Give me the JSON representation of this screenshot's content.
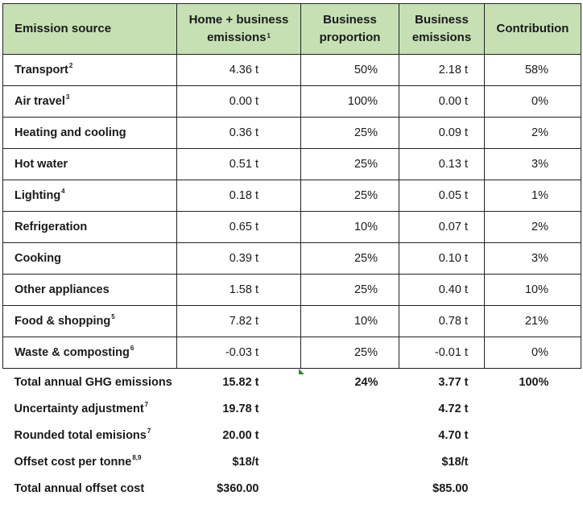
{
  "header": {
    "emission_source": "Emission source",
    "home_business": "Home + business emissions",
    "home_business_note": "1",
    "business_proportion": "Business proportion",
    "business_emissions": "Business emissions",
    "contribution": "Contribution"
  },
  "rows": [
    {
      "source": "Transport",
      "note": "2",
      "home_business": "4.36 t",
      "proportion": "50%",
      "business": "2.18 t",
      "contribution": "58%"
    },
    {
      "source": "Air travel",
      "note": "3",
      "home_business": "0.00 t",
      "proportion": "100%",
      "business": "0.00 t",
      "contribution": "0%"
    },
    {
      "source": "Heating and cooling",
      "note": "",
      "home_business": "0.36 t",
      "proportion": "25%",
      "business": "0.09 t",
      "contribution": "2%"
    },
    {
      "source": "Hot water",
      "note": "",
      "home_business": "0.51 t",
      "proportion": "25%",
      "business": "0.13 t",
      "contribution": "3%"
    },
    {
      "source": "Lighting",
      "note": "4",
      "home_business": "0.18 t",
      "proportion": "25%",
      "business": "0.05 t",
      "contribution": "1%"
    },
    {
      "source": "Refrigeration",
      "note": "",
      "home_business": "0.65 t",
      "proportion": "10%",
      "business": "0.07 t",
      "contribution": "2%"
    },
    {
      "source": "Cooking",
      "note": "",
      "home_business": "0.39 t",
      "proportion": "25%",
      "business": "0.10 t",
      "contribution": "3%"
    },
    {
      "source": "Other appliances",
      "note": "",
      "home_business": "1.58 t",
      "proportion": "25%",
      "business": "0.40 t",
      "contribution": "10%"
    },
    {
      "source": "Food & shopping",
      "note": "5",
      "home_business": "7.82 t",
      "proportion": "10%",
      "business": "0.78 t",
      "contribution": "21%"
    },
    {
      "source": "Waste & composting",
      "note": "6",
      "home_business": "-0.03 t",
      "proportion": "25%",
      "business": "-0.01 t",
      "contribution": "0%"
    }
  ],
  "summary": [
    {
      "label": "Total annual GHG emissions",
      "note": "",
      "home_business": "15.82 t",
      "proportion": "24%",
      "business": "3.77 t",
      "contribution": "100%"
    },
    {
      "label": "Uncertainty adjustment",
      "note": "7",
      "home_business": "19.78 t",
      "proportion": "",
      "business": "4.72 t",
      "contribution": ""
    },
    {
      "label": "Rounded total emisions",
      "note": "7",
      "home_business": "20.00 t",
      "proportion": "",
      "business": "4.70 t",
      "contribution": ""
    },
    {
      "label": "Offset cost per tonne",
      "note": "8,9",
      "home_business": "$18/t",
      "proportion": "",
      "business": "$18/t",
      "contribution": ""
    },
    {
      "label": "Total annual offset cost",
      "note": "",
      "home_business": "$360.00",
      "proportion": "",
      "business": "$85.00",
      "contribution": ""
    }
  ]
}
